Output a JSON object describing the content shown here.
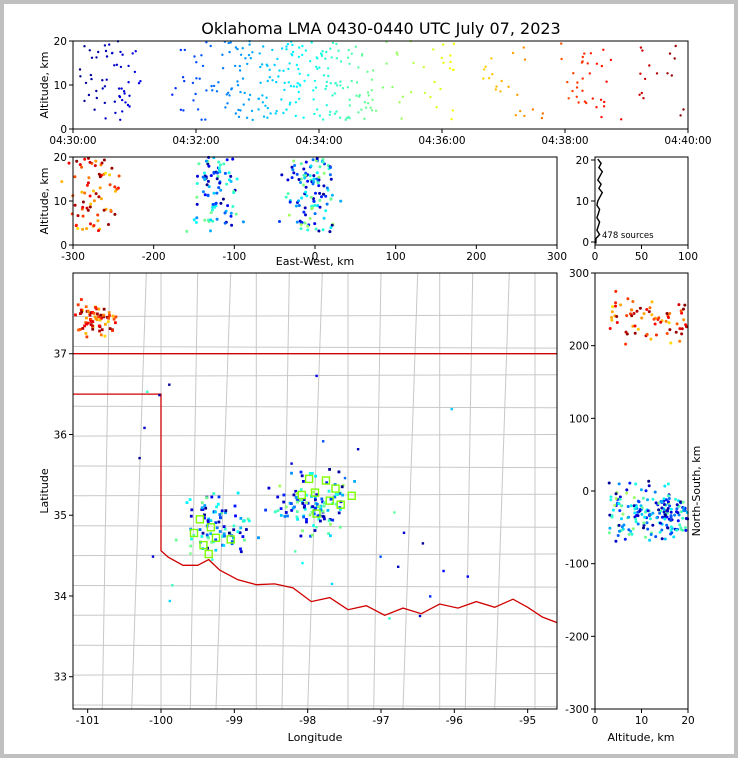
{
  "title": "Oklahoma LMA 0430-0440 UTC July 07, 2023",
  "chart_data": [
    {
      "id": "time-height",
      "type": "scatter",
      "xlabel": "",
      "ylabel": "Altitude, km",
      "xticks": [
        "04:30:00",
        "04:32:00",
        "04:34:00",
        "04:36:00",
        "04:38:00",
        "04:40:00"
      ],
      "xlim_minutes": [
        0,
        10
      ],
      "ylim": [
        0,
        20
      ],
      "yticks": [
        0,
        10,
        20
      ],
      "color_by": "time",
      "note": "points colored blue (early) through red (late)"
    },
    {
      "id": "ew-altitude",
      "type": "scatter",
      "xlabel": "East-West, km",
      "ylabel": "Altitude, km",
      "xlim": [
        -300,
        300
      ],
      "xticks": [
        -300,
        -200,
        -100,
        0,
        100,
        200,
        300
      ],
      "ylim": [
        0,
        20
      ],
      "yticks": [
        0,
        10,
        20
      ]
    },
    {
      "id": "altitude-histogram",
      "type": "line",
      "annotation": "478 sources",
      "xlim": [
        0,
        100
      ],
      "xticks": [
        0,
        50,
        100
      ],
      "ylim": [
        0,
        20
      ],
      "yticks": [
        0,
        10,
        20
      ]
    },
    {
      "id": "plan-view",
      "type": "scatter",
      "xlabel": "Longitude",
      "ylabel": "Latitude",
      "xlim": [
        -101.2,
        -94.6
      ],
      "xticks": [
        -101,
        -100,
        -99,
        -98,
        -97,
        -96,
        -95
      ],
      "ylim": [
        32.6,
        38.0
      ],
      "yticks": [
        33,
        34,
        35,
        36,
        37
      ],
      "stations": [
        [
          -99.55,
          34.78
        ],
        [
          -99.47,
          34.95
        ],
        [
          -99.42,
          34.63
        ],
        [
          -99.35,
          34.52
        ],
        [
          -99.32,
          34.85
        ],
        [
          -99.25,
          34.72
        ],
        [
          -99.05,
          34.7
        ],
        [
          -98.08,
          35.25
        ],
        [
          -97.98,
          35.45
        ],
        [
          -97.9,
          35.28
        ],
        [
          -97.88,
          35.02
        ],
        [
          -97.75,
          35.43
        ],
        [
          -97.7,
          35.18
        ],
        [
          -97.62,
          35.33
        ],
        [
          -97.55,
          35.13
        ],
        [
          -97.4,
          35.24
        ]
      ]
    },
    {
      "id": "altitude-ns",
      "type": "scatter",
      "xlabel": "Altitude, km",
      "ylabel": "North-South, km",
      "xlim": [
        0,
        20
      ],
      "xticks": [
        0,
        10,
        20
      ],
      "ylim": [
        -300,
        300
      ],
      "yticks": [
        -300,
        -200,
        -100,
        0,
        100,
        200,
        300
      ]
    }
  ],
  "colors": {
    "border": "#d00000",
    "county": "#c8c8c8",
    "station": "#7fff00",
    "background": "#ffffff"
  }
}
